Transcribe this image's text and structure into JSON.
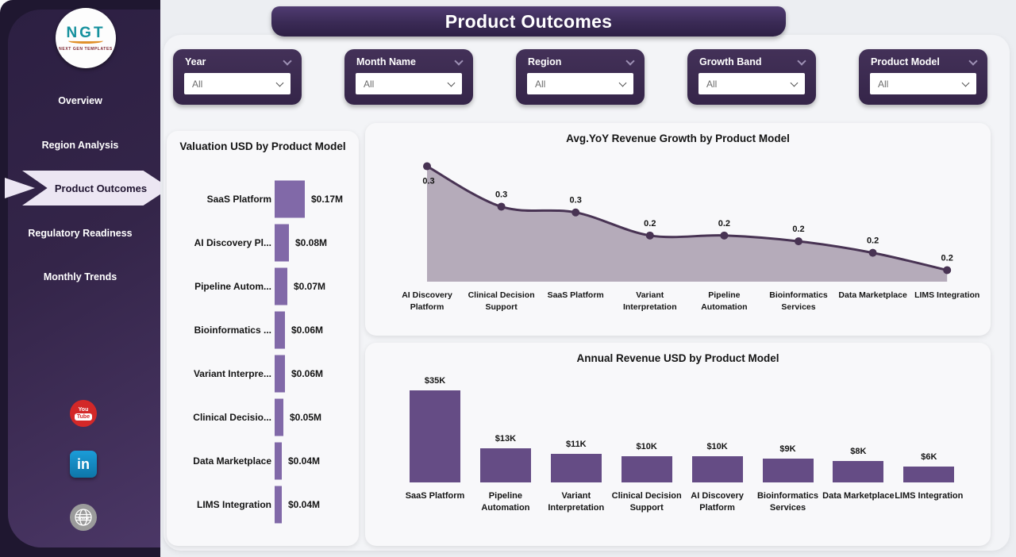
{
  "app": {
    "title": "Product Outcomes"
  },
  "sidebar": {
    "logo": {
      "text": "NGT",
      "subtext": "NEXT GEN TEMPLATES"
    },
    "items": [
      {
        "label": "Overview",
        "active": false
      },
      {
        "label": "Region Analysis",
        "active": false
      },
      {
        "label": "Product Outcomes",
        "active": true
      },
      {
        "label": "Regulatory Readiness",
        "active": false
      },
      {
        "label": "Monthly Trends",
        "active": false
      }
    ],
    "social": [
      {
        "name": "youtube",
        "line1": "You",
        "line2": "Tube"
      },
      {
        "name": "linkedin",
        "label": "in"
      },
      {
        "name": "website",
        "label": "www"
      }
    ]
  },
  "filters": [
    {
      "label": "Year",
      "value": "All"
    },
    {
      "label": "Month Name",
      "value": "All"
    },
    {
      "label": "Region",
      "value": "All"
    },
    {
      "label": "Growth Band",
      "value": "All"
    },
    {
      "label": "Product Model",
      "value": "All"
    }
  ],
  "colors": {
    "sidebar_dark": "#1f1730",
    "sidebar_gradient_light": "#4b3766",
    "banner": "#3a2a55",
    "filter_card": "#372751",
    "h_bar": "#8169a8",
    "v_bar": "#654c85",
    "line": "#483353",
    "area_fill": "#b5abba",
    "ribbon": "#ece6f3"
  },
  "chart_data": [
    {
      "type": "bar",
      "orientation": "horizontal",
      "title": "Valuation USD by Product Model",
      "categories": [
        "SaaS Platform",
        "AI Discovery Pl...",
        "Pipeline Autom...",
        "Bioinformatics ...",
        "Variant Interpre...",
        "Clinical Decisio...",
        "Data Marketplace",
        "LIMS Integration"
      ],
      "values": [
        0.17,
        0.08,
        0.07,
        0.06,
        0.06,
        0.05,
        0.04,
        0.04
      ],
      "labels": [
        "$0.17M",
        "$0.08M",
        "$0.07M",
        "$0.06M",
        "$0.06M",
        "$0.05M",
        "$0.04M",
        "$0.04M"
      ],
      "unit": "USD (millions)",
      "xlim": [
        0,
        0.17
      ]
    },
    {
      "type": "area",
      "title": "Avg.YoY Revenue Growth by Product Model",
      "categories": [
        "AI Discovery Platform",
        "Clinical Decision Support",
        "SaaS Platform",
        "Variant Interpretation",
        "Pipeline Automation",
        "Bioinformatics Services",
        "Data Marketplace",
        "LIMS Integration"
      ],
      "values": [
        0.34,
        0.27,
        0.26,
        0.22,
        0.22,
        0.21,
        0.19,
        0.16
      ],
      "labels": [
        "0.3",
        "0.3",
        "0.3",
        "0.2",
        "0.2",
        "0.2",
        "0.2",
        "0.2"
      ],
      "ylim": [
        0.14,
        0.36
      ],
      "grid": false,
      "legend": "none"
    },
    {
      "type": "bar",
      "orientation": "vertical",
      "title": "Annual Revenue USD by Product Model",
      "categories": [
        "SaaS Platform",
        "Pipeline Automation",
        "Variant Interpretation",
        "Clinical Decision Support",
        "AI Discovery Platform",
        "Bioinformatics Services",
        "Data Marketplace",
        "LIMS Integration"
      ],
      "values": [
        35,
        13,
        11,
        10,
        10,
        9,
        8,
        6
      ],
      "labels": [
        "$35K",
        "$13K",
        "$11K",
        "$10K",
        "$10K",
        "$9K",
        "$8K",
        "$6K"
      ],
      "unit": "USD (thousands)",
      "ylim": [
        0,
        35
      ]
    }
  ]
}
